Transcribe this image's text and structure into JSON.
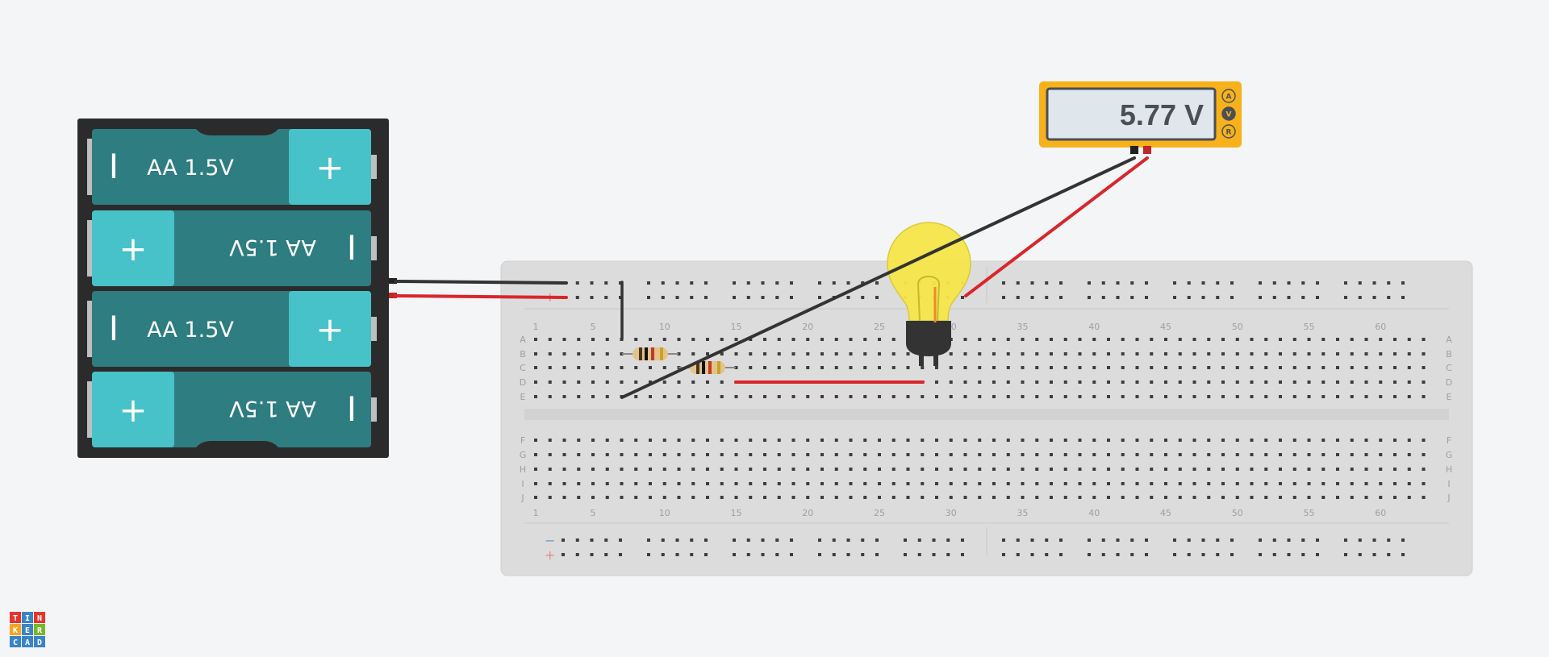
{
  "battery_pack": {
    "cells": [
      {
        "label": "AA 1.5V",
        "plus": "+",
        "minus": "I",
        "flipped": false
      },
      {
        "label": "AA 1.5V",
        "plus": "+",
        "minus": "I",
        "flipped": true
      },
      {
        "label": "AA 1.5V",
        "plus": "+",
        "minus": "I",
        "flipped": false
      },
      {
        "label": "AA 1.5V",
        "plus": "+",
        "minus": "I",
        "flipped": true
      }
    ]
  },
  "multimeter": {
    "reading": "5.77 V",
    "modes": [
      "A",
      "V",
      "R"
    ],
    "selected_mode": "V"
  },
  "breadboard": {
    "column_numbers": [
      "1",
      "5",
      "10",
      "15",
      "20",
      "25",
      "30",
      "35",
      "40",
      "45",
      "50",
      "55",
      "60"
    ],
    "rows_top": [
      "A",
      "B",
      "C",
      "D",
      "E"
    ],
    "rows_bottom": [
      "F",
      "G",
      "H",
      "I",
      "J"
    ],
    "rail_minus": "−",
    "rail_plus": "+"
  },
  "logo": {
    "letters": [
      "T",
      "I",
      "N",
      "K",
      "E",
      "R",
      "C",
      "A",
      "D"
    ]
  },
  "colors": {
    "background": "#f4f5f7",
    "battery_dark": "#2e7d80",
    "battery_light": "#47c2c9",
    "battery_holder": "#2b2b2b",
    "breadboard": "#dcdcdc",
    "wire_red": "#d9262b",
    "wire_black": "#333333",
    "bulb_yellow": "#f6e64a",
    "multimeter_orange": "#f7b21b",
    "multimeter_screen": "#dfe7ec"
  }
}
